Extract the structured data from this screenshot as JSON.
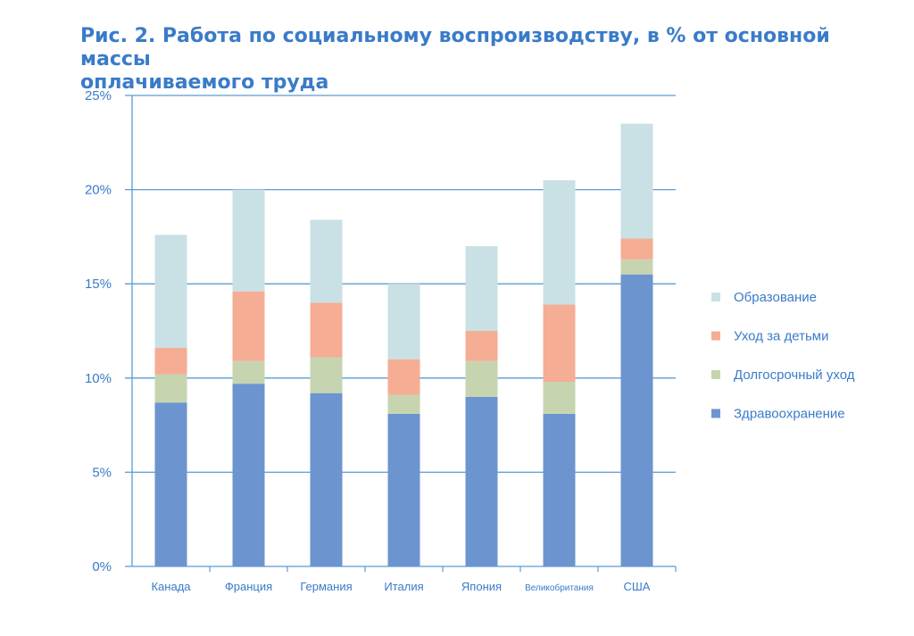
{
  "title_line1": "Рис. 2. Работа по социальному воспроизводству, в % от основной массы",
  "title_line2": "оплачиваемого труда",
  "chart_data": {
    "type": "bar",
    "stacked": true,
    "categories": [
      "Канада",
      "Франция",
      "Германия",
      "Италия",
      "Япония",
      "Великобритания",
      "США"
    ],
    "series": [
      {
        "name": "Здравоохранение",
        "color": "#6c94cf",
        "values": [
          8.7,
          9.7,
          9.2,
          8.1,
          9.0,
          8.1,
          15.5
        ]
      },
      {
        "name": "Долгосрочный уход",
        "color": "#c6d5b0",
        "values": [
          1.5,
          1.2,
          1.9,
          1.0,
          1.9,
          1.7,
          0.8
        ]
      },
      {
        "name": "Уход за детьми",
        "color": "#f5ad94",
        "values": [
          1.4,
          3.7,
          2.9,
          1.9,
          1.6,
          4.1,
          1.1
        ]
      },
      {
        "name": "Образование",
        "color": "#c9e1e5",
        "values": [
          6.0,
          5.4,
          4.4,
          4.0,
          4.5,
          6.6,
          6.1
        ]
      }
    ],
    "legend_order": [
      "Образование",
      "Уход за детьми",
      "Долгосрочный уход",
      "Здравоохранение"
    ],
    "yticks": [
      "0%",
      "5%",
      "10%",
      "15%",
      "20%",
      "25%"
    ],
    "ylim": [
      0,
      25
    ],
    "grid": true,
    "legend_position": "right"
  },
  "colors": {
    "accent": "#3a7bc8",
    "axis": "#5b9bd5"
  }
}
